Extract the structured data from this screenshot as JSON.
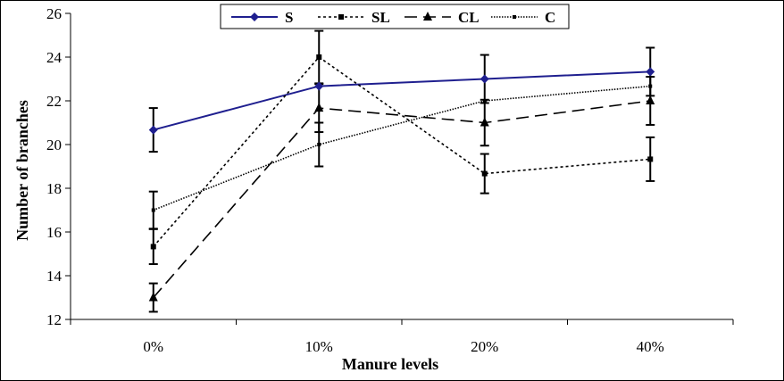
{
  "chart_data": {
    "type": "line",
    "categories": [
      "0%",
      "10%",
      "20%",
      "40%"
    ],
    "xlabel": "Manure levels",
    "ylabel": "Number of branches",
    "ylim": [
      12,
      26
    ],
    "yticks": [
      12,
      14,
      16,
      18,
      20,
      22,
      24,
      26
    ],
    "grid": false,
    "legend_position": "top-center",
    "series": [
      {
        "name": "S",
        "values": [
          20.67,
          22.67,
          23.0,
          23.33
        ],
        "errors": [
          1.0,
          0,
          1.1,
          1.1
        ],
        "color": "#1f1f8f",
        "dash": "",
        "marker": "diamond"
      },
      {
        "name": "SL",
        "values": [
          15.33,
          24.0,
          18.67,
          19.33
        ],
        "errors": [
          0.8,
          1.2,
          0.9,
          1.0
        ],
        "color": "#000000",
        "dash": "3,3",
        "marker": "square"
      },
      {
        "name": "CL",
        "values": [
          13.0,
          21.67,
          21.0,
          22.0
        ],
        "errors": [
          0.65,
          1.1,
          1.05,
          1.1
        ],
        "color": "#000000",
        "dash": "14,7",
        "marker": "triangle"
      },
      {
        "name": "C",
        "values": [
          17.0,
          20.0,
          22.0,
          22.67
        ],
        "errors": [
          0.85,
          1.0,
          0,
          0
        ],
        "color": "#000000",
        "dash": "1.5,1.5",
        "marker": "small-square"
      }
    ]
  }
}
